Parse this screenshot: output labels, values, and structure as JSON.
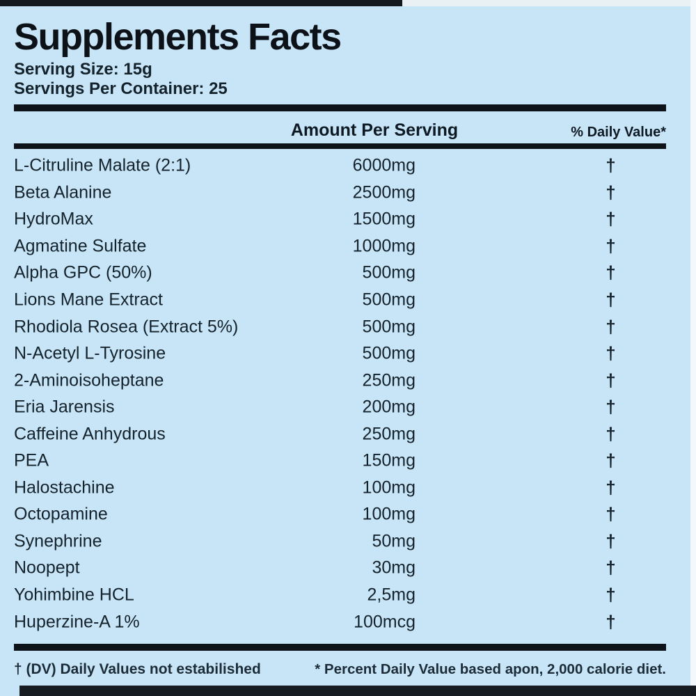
{
  "label": {
    "title": "Supplements Facts",
    "serving_size": "Serving Size: 15g",
    "servings_per_container": "Servings Per Container: 25",
    "columns": {
      "amount_header": "Amount Per Serving",
      "daily_value_header": "% Daily Value*"
    },
    "rows": [
      {
        "name": "L-Citruline Malate (2:1)",
        "amount": "6000mg",
        "daily_value": "†"
      },
      {
        "name": "Beta Alanine",
        "amount": "2500mg",
        "daily_value": "†"
      },
      {
        "name": "HydroMax",
        "amount": "1500mg",
        "daily_value": "†"
      },
      {
        "name": "Agmatine Sulfate",
        "amount": "1000mg",
        "daily_value": "†"
      },
      {
        "name": "Alpha GPC (50%)",
        "amount": "500mg",
        "daily_value": "†"
      },
      {
        "name": "Lions Mane Extract",
        "amount": "500mg",
        "daily_value": "†"
      },
      {
        "name": "Rhodiola Rosea (Extract 5%)",
        "amount": "500mg",
        "daily_value": "†"
      },
      {
        "name": "N-Acetyl L-Tyrosine",
        "amount": "500mg",
        "daily_value": "†"
      },
      {
        "name": "2-Aminoisoheptane",
        "amount": "250mg",
        "daily_value": "†"
      },
      {
        "name": "Eria Jarensis",
        "amount": "200mg",
        "daily_value": "†"
      },
      {
        "name": "Caffeine Anhydrous",
        "amount": "250mg",
        "daily_value": "†"
      },
      {
        "name": "PEA",
        "amount": "150mg",
        "daily_value": "†"
      },
      {
        "name": "Halostachine",
        "amount": "100mg",
        "daily_value": "†"
      },
      {
        "name": "Octopamine",
        "amount": "100mg",
        "daily_value": "†"
      },
      {
        "name": "Synephrine",
        "amount": "50mg",
        "daily_value": "†"
      },
      {
        "name": "Noopept",
        "amount": "30mg",
        "daily_value": "†"
      },
      {
        "name": "Yohimbine HCL",
        "amount": "2,5mg",
        "daily_value": "†"
      },
      {
        "name": "Huperzine-A 1%",
        "amount": "100mcg",
        "daily_value": "†"
      }
    ],
    "footnotes": {
      "left": "† (DV) Daily Values not estabilished",
      "right": "* Percent Daily Value based apon, 2,000 calorie diet."
    },
    "colors": {
      "background": "#c8e5f7",
      "text": "#14222c",
      "rule": "#0d1318",
      "edge_bar": "#14191e"
    }
  }
}
